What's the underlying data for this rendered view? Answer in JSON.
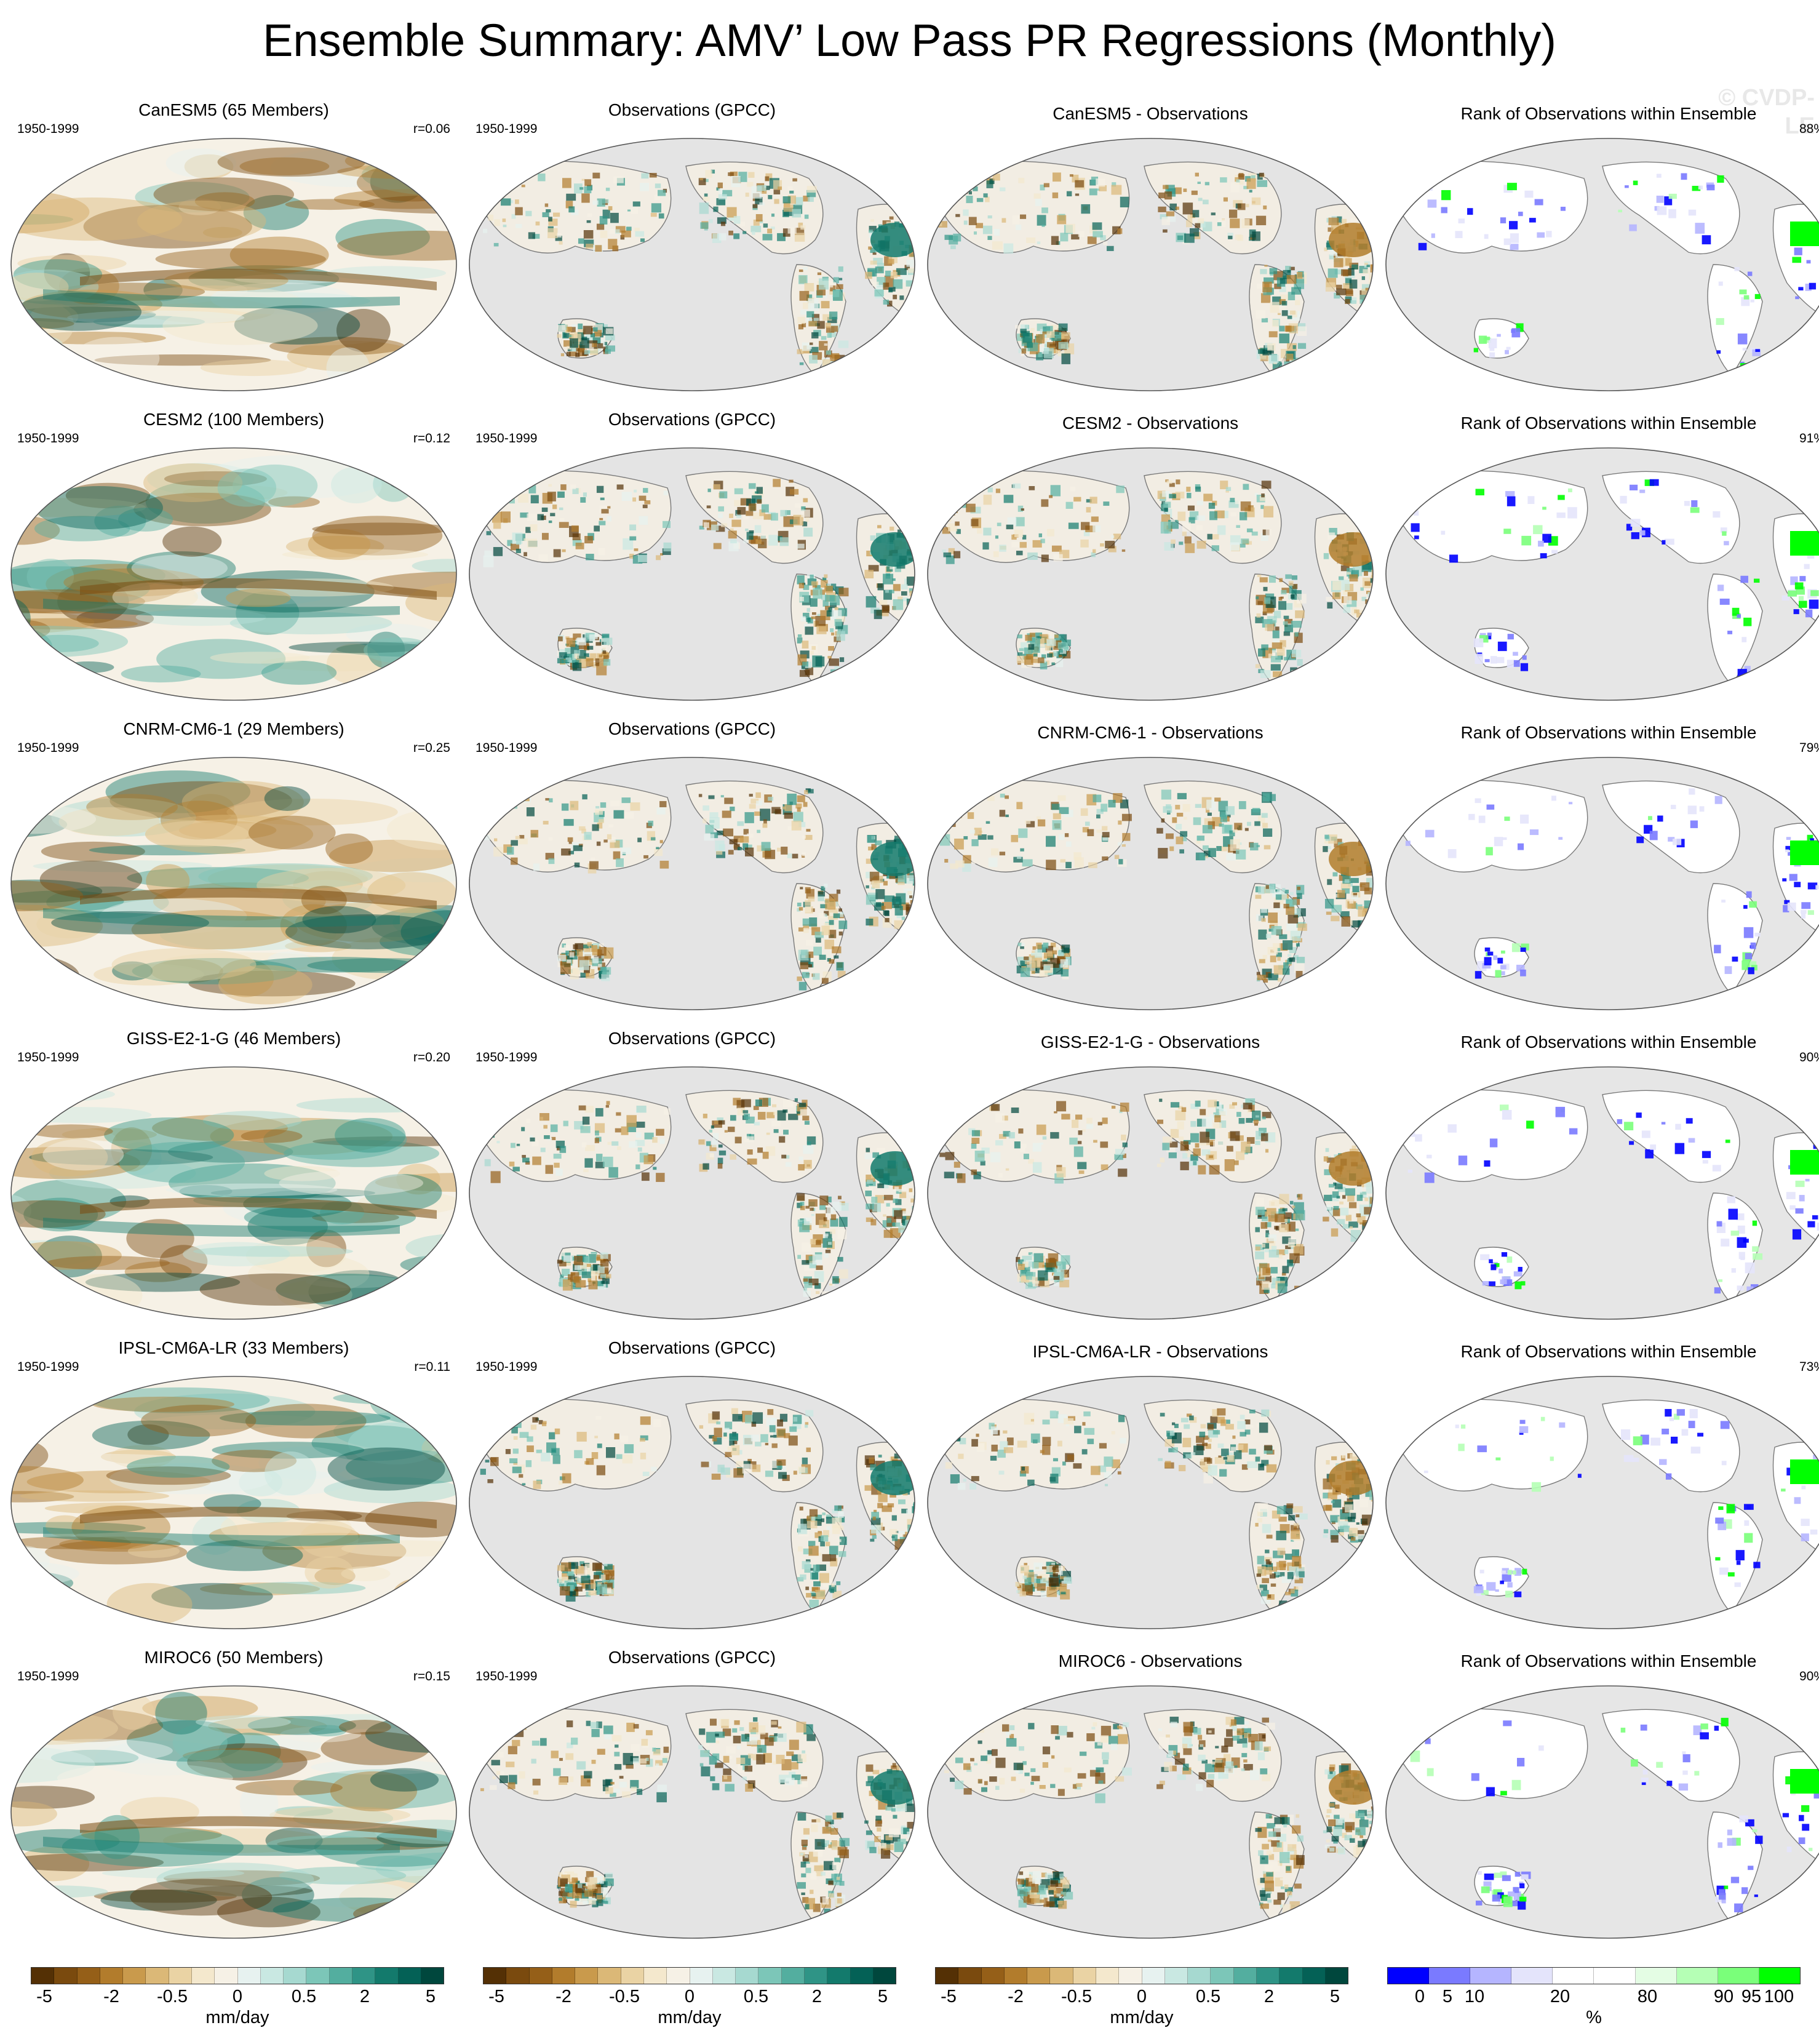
{
  "title": "Ensemble Summary: AMV’ Low Pass PR Regressions (Monthly)",
  "watermark": "© CVDP-LE",
  "period": "1950-1999",
  "rows": [
    {
      "model_title": "CanESM5 (65 Members)",
      "r": "r=0.06",
      "obs_title": "Observations (GPCC)",
      "diff_title": "CanESM5 - Observations",
      "rank_title": "Rank of Observations within Ensemble",
      "rank_pct": "88%"
    },
    {
      "model_title": "CESM2 (100 Members)",
      "r": "r=0.12",
      "obs_title": "Observations (GPCC)",
      "diff_title": "CESM2 - Observations",
      "rank_title": "Rank of Observations within Ensemble",
      "rank_pct": "91%"
    },
    {
      "model_title": "CNRM-CM6-1 (29 Members)",
      "r": "r=0.25",
      "obs_title": "Observations (GPCC)",
      "diff_title": "CNRM-CM6-1 - Observations",
      "rank_title": "Rank of Observations within Ensemble",
      "rank_pct": "79%"
    },
    {
      "model_title": "GISS-E2-1-G (46 Members)",
      "r": "r=0.20",
      "obs_title": "Observations (GPCC)",
      "diff_title": "GISS-E2-1-G - Observations",
      "rank_title": "Rank of Observations within Ensemble",
      "rank_pct": "90%"
    },
    {
      "model_title": "IPSL-CM6A-LR (33 Members)",
      "r": "r=0.11",
      "obs_title": "Observations (GPCC)",
      "diff_title": "IPSL-CM6A-LR - Observations",
      "rank_title": "Rank of Observations within Ensemble",
      "rank_pct": "73%"
    },
    {
      "model_title": "MIROC6 (50 Members)",
      "r": "r=0.15",
      "obs_title": "Observations (GPCC)",
      "diff_title": "MIROC6 - Observations",
      "rank_title": "Rank of Observations within Ensemble",
      "rank_pct": "90%"
    }
  ],
  "colorbars": {
    "pr": {
      "colors": [
        "#543005",
        "#7a4a0e",
        "#955f18",
        "#b27c2c",
        "#c99a4c",
        "#dbb877",
        "#ead3a4",
        "#f4e8cd",
        "#f6f1e6",
        "#e7f2f0",
        "#c9e8e2",
        "#a6d9d0",
        "#7cc6b8",
        "#53ae9f",
        "#2f9486",
        "#137a6c",
        "#046156",
        "#00473d"
      ],
      "ticks": [
        "-5",
        "-2",
        "-0.5",
        "0",
        "0.5",
        "2",
        "5"
      ],
      "unit": "mm/day"
    },
    "rank": {
      "colors": [
        "#0000ff",
        "#7a7aff",
        "#b5b5ff",
        "#e4e4fb",
        "#ffffff",
        "#ffffff",
        "#e4fde4",
        "#b5ffb5",
        "#7aff7a",
        "#00ff00"
      ],
      "ticks": [
        "0",
        "5",
        "10",
        "20",
        "80",
        "90",
        "95",
        "100"
      ],
      "unit": "%"
    }
  }
}
